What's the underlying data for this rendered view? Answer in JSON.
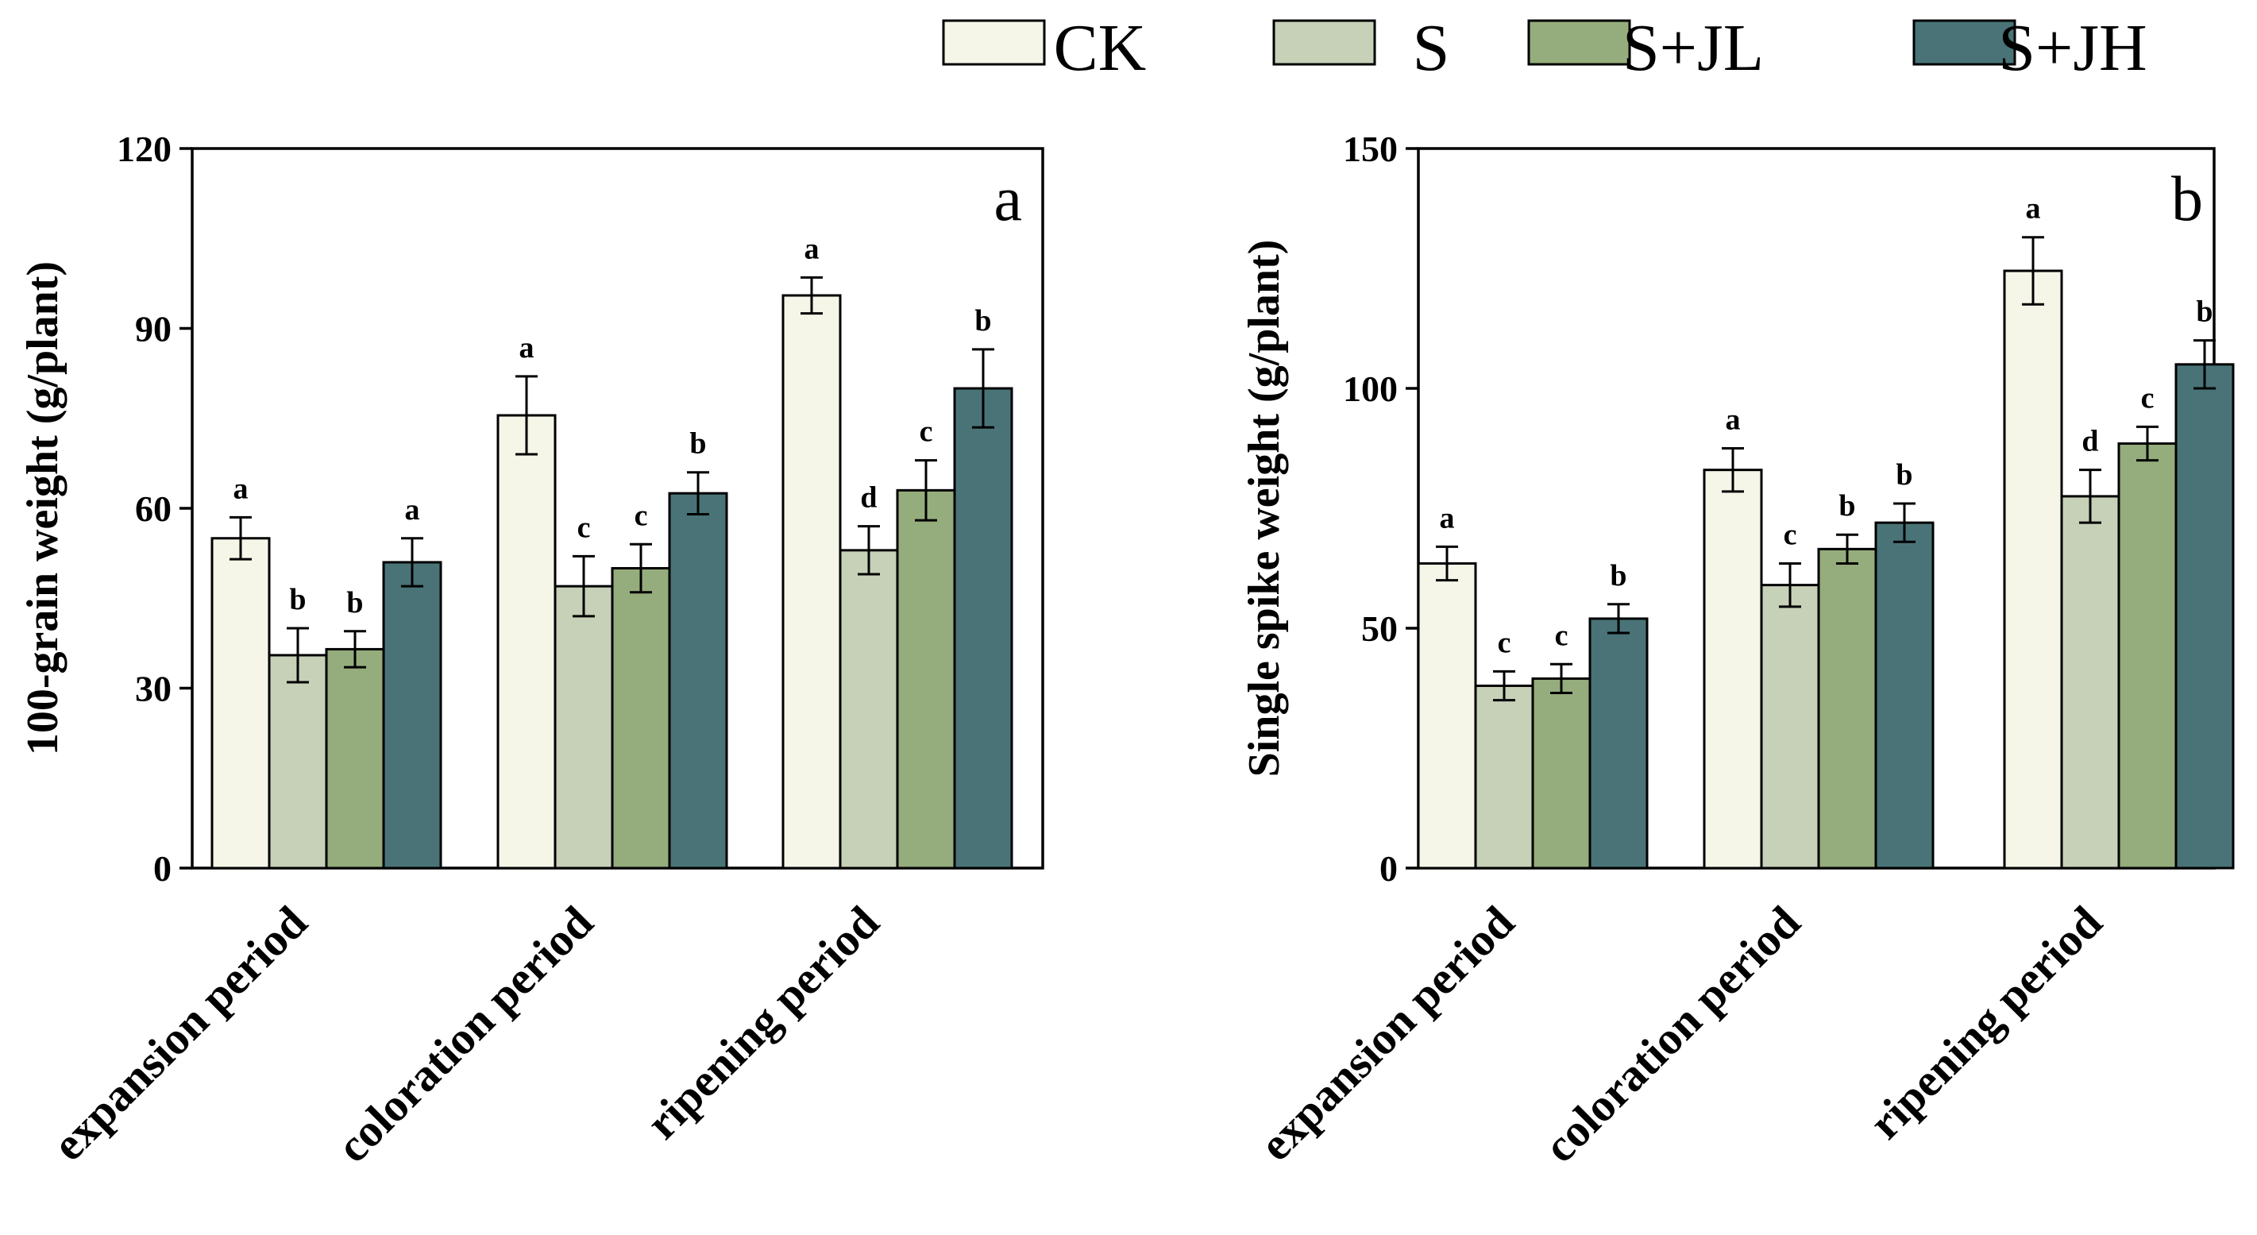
{
  "legend": {
    "items": [
      {
        "label": "CK",
        "color": "#f5f6e8"
      },
      {
        "label": "S",
        "color": "#c6d1b8"
      },
      {
        "label": "S+JL",
        "color": "#95ad7c"
      },
      {
        "label": "S+JH",
        "color": "#497377"
      }
    ]
  },
  "chart_data": [
    {
      "type": "bar",
      "panel_label": "a",
      "title": "",
      "xlabel": "",
      "ylabel": "100-grain weight (g/plant)",
      "ylim": [
        0,
        120
      ],
      "yticks": [
        0,
        30,
        60,
        90,
        120
      ],
      "categories": [
        "expansion period",
        "coloration period",
        "ripening period"
      ],
      "series": [
        {
          "name": "CK",
          "color": "#f5f6e8",
          "values": [
            55,
            75.5,
            95.5
          ],
          "errors": [
            3.5,
            6.5,
            3
          ],
          "significance": [
            "a",
            "a",
            "a"
          ]
        },
        {
          "name": "S",
          "color": "#c6d1b8",
          "values": [
            35.5,
            47,
            53
          ],
          "errors": [
            4.5,
            5,
            4
          ],
          "significance": [
            "b",
            "c",
            "d"
          ]
        },
        {
          "name": "S+JL",
          "color": "#95ad7c",
          "values": [
            36.5,
            50,
            63
          ],
          "errors": [
            3,
            4,
            5
          ],
          "significance": [
            "b",
            "c",
            "c"
          ]
        },
        {
          "name": "S+JH",
          "color": "#497377",
          "values": [
            51,
            62.5,
            80
          ],
          "errors": [
            4,
            3.5,
            6.5
          ],
          "significance": [
            "a",
            "b",
            "b"
          ]
        }
      ]
    },
    {
      "type": "bar",
      "panel_label": "b",
      "title": "",
      "xlabel": "",
      "ylabel": "Single spike weight (g/plant)",
      "ylim": [
        0,
        150
      ],
      "yticks": [
        0,
        50,
        100,
        150
      ],
      "categories": [
        "expansion period",
        "coloration period",
        "ripening period"
      ],
      "series": [
        {
          "name": "CK",
          "color": "#f5f6e8",
          "values": [
            63.5,
            83,
            124.5
          ],
          "errors": [
            3.5,
            4.5,
            7
          ],
          "significance": [
            "a",
            "a",
            "a"
          ]
        },
        {
          "name": "S",
          "color": "#c6d1b8",
          "values": [
            38,
            59,
            77.5
          ],
          "errors": [
            3,
            4.5,
            5.5
          ],
          "significance": [
            "c",
            "c",
            "d"
          ]
        },
        {
          "name": "S+JL",
          "color": "#95ad7c",
          "values": [
            39.5,
            66.5,
            88.5
          ],
          "errors": [
            3,
            3,
            3.5
          ],
          "significance": [
            "c",
            "b",
            "c"
          ]
        },
        {
          "name": "S+JH",
          "color": "#497377",
          "values": [
            52,
            72,
            105
          ],
          "errors": [
            3,
            4,
            5
          ],
          "significance": [
            "b",
            "b",
            "b"
          ]
        }
      ]
    }
  ]
}
